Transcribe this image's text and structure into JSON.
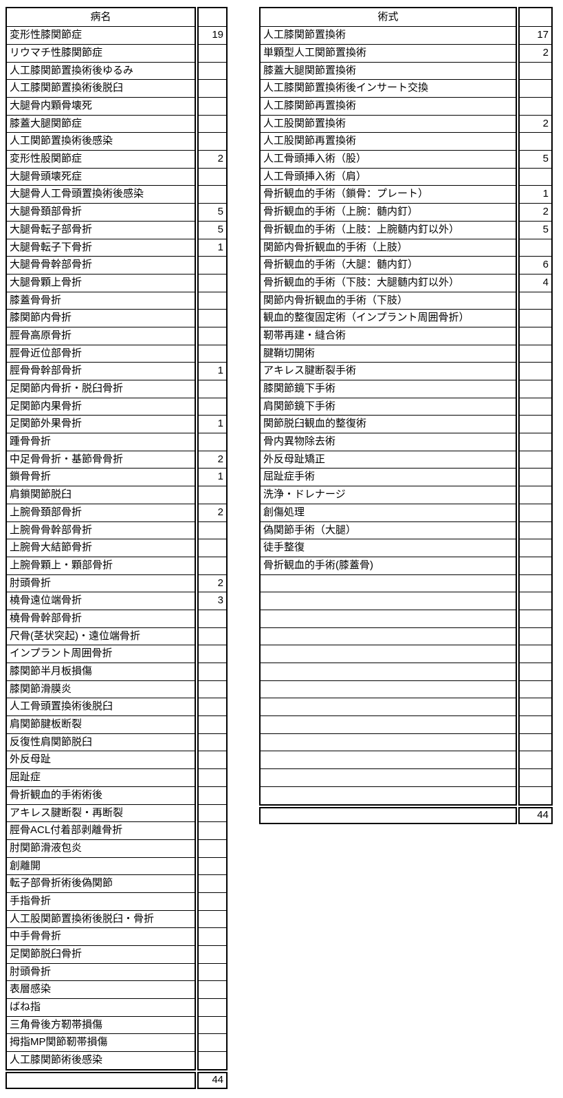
{
  "tables": [
    {
      "header": "病名",
      "total": "44",
      "rows": [
        {
          "label": "変形性膝関節症",
          "count": "19"
        },
        {
          "label": "リウマチ性膝関節症",
          "count": ""
        },
        {
          "label": "人工膝関節置換術後ゆるみ",
          "count": ""
        },
        {
          "label": "人工膝関節置換術後脱臼",
          "count": ""
        },
        {
          "label": "大腿骨内顆骨壊死",
          "count": ""
        },
        {
          "label": "膝蓋大腿関節症",
          "count": ""
        },
        {
          "label": "人工関節置換術後感染",
          "count": ""
        },
        {
          "label": "変形性股関節症",
          "count": "2"
        },
        {
          "label": "大腿骨頭壊死症",
          "count": ""
        },
        {
          "label": "大腿骨人工骨頭置換術後感染",
          "count": ""
        },
        {
          "label": "大腿骨頚部骨折",
          "count": "5"
        },
        {
          "label": "大腿骨転子部骨折",
          "count": "5"
        },
        {
          "label": "大腿骨転子下骨折",
          "count": "1"
        },
        {
          "label": "大腿骨骨幹部骨折",
          "count": ""
        },
        {
          "label": "大腿骨顆上骨折",
          "count": ""
        },
        {
          "label": "膝蓋骨骨折",
          "count": ""
        },
        {
          "label": "膝関節内骨折",
          "count": ""
        },
        {
          "label": "脛骨高原骨折",
          "count": ""
        },
        {
          "label": "脛骨近位部骨折",
          "count": ""
        },
        {
          "label": "脛骨骨幹部骨折",
          "count": "1"
        },
        {
          "label": "足関節内骨折・脱臼骨折",
          "count": ""
        },
        {
          "label": "足関節内果骨折",
          "count": ""
        },
        {
          "label": "足関節外果骨折",
          "count": "1"
        },
        {
          "label": "踵骨骨折",
          "count": ""
        },
        {
          "label": "中足骨骨折・基節骨骨折",
          "count": "2"
        },
        {
          "label": "鎖骨骨折",
          "count": "1"
        },
        {
          "label": "肩鎖関節脱臼",
          "count": ""
        },
        {
          "label": "上腕骨頚部骨折",
          "count": "2"
        },
        {
          "label": "上腕骨骨幹部骨折",
          "count": ""
        },
        {
          "label": "上腕骨大結節骨折",
          "count": ""
        },
        {
          "label": "上腕骨顆上・顆部骨折",
          "count": ""
        },
        {
          "label": "肘頭骨折",
          "count": "2"
        },
        {
          "label": "橈骨遠位端骨折",
          "count": "3"
        },
        {
          "label": "橈骨骨幹部骨折",
          "count": ""
        },
        {
          "label": "尺骨(茎状突起)・遠位端骨折",
          "count": ""
        },
        {
          "label": "インプラント周囲骨折",
          "count": ""
        },
        {
          "label": "膝関節半月板損傷",
          "count": ""
        },
        {
          "label": "膝関節滑膜炎",
          "count": ""
        },
        {
          "label": "人工骨頭置換術後脱臼",
          "count": ""
        },
        {
          "label": "肩関節腱板断裂",
          "count": ""
        },
        {
          "label": "反復性肩関節脱臼",
          "count": ""
        },
        {
          "label": "外反母趾",
          "count": ""
        },
        {
          "label": "屈趾症",
          "count": ""
        },
        {
          "label": "骨折観血的手術術後",
          "count": ""
        },
        {
          "label": "アキレス腱断裂・再断裂",
          "count": ""
        },
        {
          "label": "脛骨ACL付着部剥離骨折",
          "count": ""
        },
        {
          "label": "肘関節滑液包炎",
          "count": ""
        },
        {
          "label": "創離開",
          "count": ""
        },
        {
          "label": "転子部骨折術後偽関節",
          "count": ""
        },
        {
          "label": "手指骨折",
          "count": ""
        },
        {
          "label": "人工股関節置換術後脱臼・骨折",
          "count": ""
        },
        {
          "label": "中手骨骨折",
          "count": ""
        },
        {
          "label": "足関節脱臼骨折",
          "count": ""
        },
        {
          "label": "肘頭骨折",
          "count": ""
        },
        {
          "label": "表層感染",
          "count": ""
        },
        {
          "label": "ばね指",
          "count": ""
        },
        {
          "label": "三角骨後方靭帯損傷",
          "count": ""
        },
        {
          "label": "拇指MP関節靭帯損傷",
          "count": ""
        },
        {
          "label": "人工膝関節術後感染",
          "count": ""
        }
      ]
    },
    {
      "header": "術式",
      "total": "44",
      "rows": [
        {
          "label": "人工膝関節置換術",
          "count": "17"
        },
        {
          "label": "単顆型人工関節置換術",
          "count": "2"
        },
        {
          "label": "膝蓋大腿関節置換術",
          "count": ""
        },
        {
          "label": "人工膝関節置換術後インサート交換",
          "count": ""
        },
        {
          "label": "人工膝関節再置換術",
          "count": ""
        },
        {
          "label": "人工股関節置換術",
          "count": "2"
        },
        {
          "label": "人工股関節再置換術",
          "count": ""
        },
        {
          "label": "人工骨頭挿入術（股）",
          "count": "5"
        },
        {
          "label": "人工骨頭挿入術（肩）",
          "count": ""
        },
        {
          "label": "骨折観血的手術（鎖骨：プレート）",
          "count": "1"
        },
        {
          "label": "骨折観血的手術（上腕：髄内釘）",
          "count": "2"
        },
        {
          "label": "骨折観血的手術（上肢：上腕髄内釘以外）",
          "count": "5"
        },
        {
          "label": "関節内骨折観血的手術（上肢）",
          "count": ""
        },
        {
          "label": "骨折観血的手術（大腿：髄内釘）",
          "count": "6"
        },
        {
          "label": "骨折観血的手術（下肢：大腿髄内釘以外）",
          "count": "4"
        },
        {
          "label": "関節内骨折観血的手術（下肢）",
          "count": ""
        },
        {
          "label": "観血的整復固定術（インプラント周囲骨折）",
          "count": ""
        },
        {
          "label": "靭帯再建・縫合術",
          "count": ""
        },
        {
          "label": "腱鞘切開術",
          "count": ""
        },
        {
          "label": "アキレス腱断裂手術",
          "count": ""
        },
        {
          "label": "膝関節鏡下手術",
          "count": ""
        },
        {
          "label": "肩関節鏡下手術",
          "count": ""
        },
        {
          "label": "関節脱臼観血的整復術",
          "count": ""
        },
        {
          "label": "骨内異物除去術",
          "count": ""
        },
        {
          "label": "外反母趾矯正",
          "count": ""
        },
        {
          "label": "屈趾症手術",
          "count": ""
        },
        {
          "label": "洗浄・ドレナージ",
          "count": ""
        },
        {
          "label": "創傷処理",
          "count": ""
        },
        {
          "label": "偽関節手術（大腿）",
          "count": ""
        },
        {
          "label": "徒手整復",
          "count": ""
        },
        {
          "label": "骨折観血的手術(膝蓋骨)",
          "count": ""
        },
        {
          "label": "",
          "count": ""
        },
        {
          "label": "",
          "count": ""
        },
        {
          "label": "",
          "count": ""
        },
        {
          "label": "",
          "count": ""
        },
        {
          "label": "",
          "count": ""
        },
        {
          "label": "",
          "count": ""
        },
        {
          "label": "",
          "count": ""
        },
        {
          "label": "",
          "count": ""
        },
        {
          "label": "",
          "count": ""
        },
        {
          "label": "",
          "count": ""
        },
        {
          "label": "",
          "count": ""
        },
        {
          "label": "",
          "count": ""
        },
        {
          "label": "",
          "count": ""
        }
      ]
    }
  ]
}
